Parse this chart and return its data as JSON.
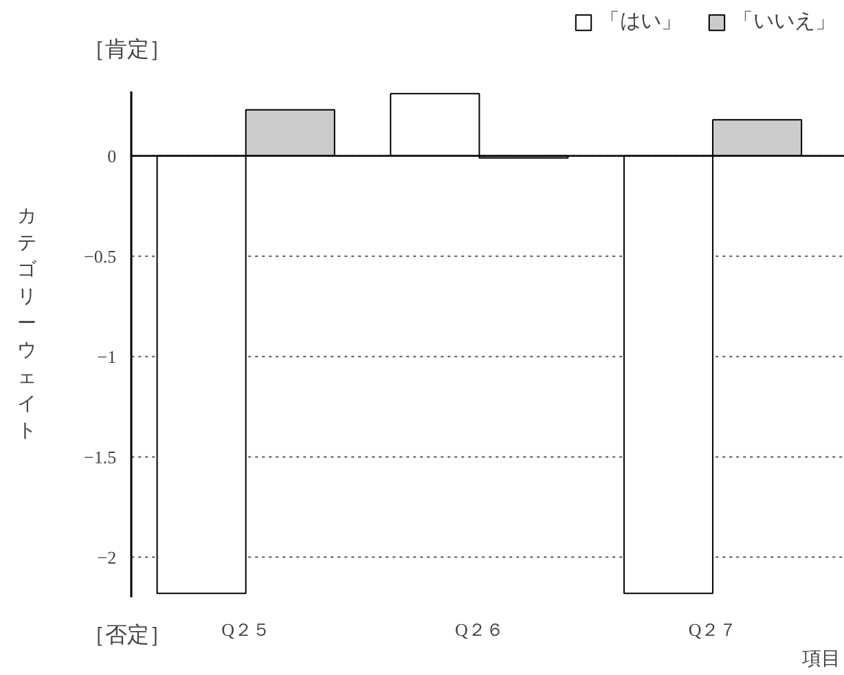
{
  "chart_data": {
    "type": "bar",
    "xlabel": "項目",
    "ylabel": "カテゴリーウェイト",
    "categories": [
      "Q２５",
      "Q２６",
      "Q２７"
    ],
    "series": [
      {
        "name": "「はい」",
        "color": "#ffffff",
        "values": [
          -2.18,
          0.31,
          -2.18
        ]
      },
      {
        "name": "「いいえ」",
        "color": "#cccccc",
        "values": [
          0.23,
          -0.01,
          0.18
        ]
      }
    ],
    "ylim": [
      -2.2,
      0.32
    ],
    "yticks": [
      0,
      -0.5,
      -1,
      -1.5,
      -2
    ],
    "grid": "y",
    "legend": "top right",
    "ref_lines": [
      {
        "axis": "y",
        "value": 0,
        "label": null,
        "color": "#000000",
        "line_style": "solid"
      }
    ],
    "annotations": [
      "［肯定］",
      "［否定］"
    ]
  }
}
